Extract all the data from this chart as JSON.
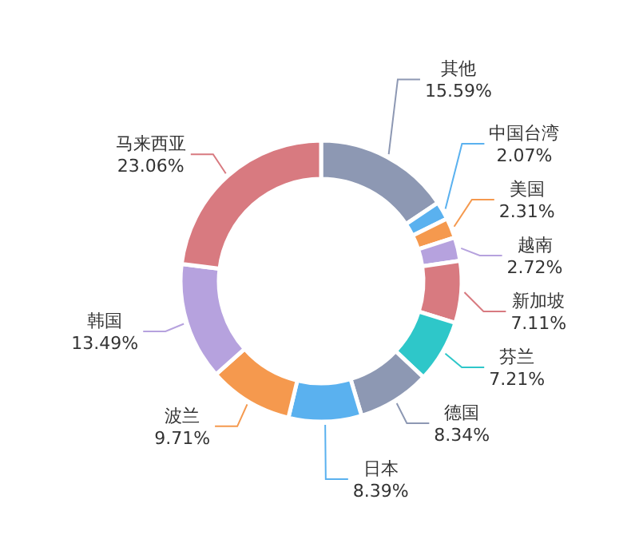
{
  "chart_data": {
    "type": "donut",
    "categories": [
      "其他",
      "中国台湾",
      "美国",
      "越南",
      "新加坡",
      "芬兰",
      "德国",
      "日本",
      "波兰",
      "韩国",
      "马来西亚"
    ],
    "values": [
      15.59,
      2.07,
      2.31,
      2.72,
      7.11,
      7.21,
      8.34,
      8.39,
      9.71,
      13.49,
      23.06
    ],
    "colors": [
      "#8d98b3",
      "#5ab1ef",
      "#f5994e",
      "#b6a2de",
      "#d87a80",
      "#2ec7c9",
      "#8d98b3",
      "#5ab1ef",
      "#f5994e",
      "#b6a2de",
      "#d87a80"
    ],
    "value_labels": [
      "15.59%",
      "2.07%",
      "2.31%",
      "2.72%",
      "7.11%",
      "7.21%",
      "8.34%",
      "8.39%",
      "9.71%",
      "13.49%",
      "23.06%"
    ]
  }
}
